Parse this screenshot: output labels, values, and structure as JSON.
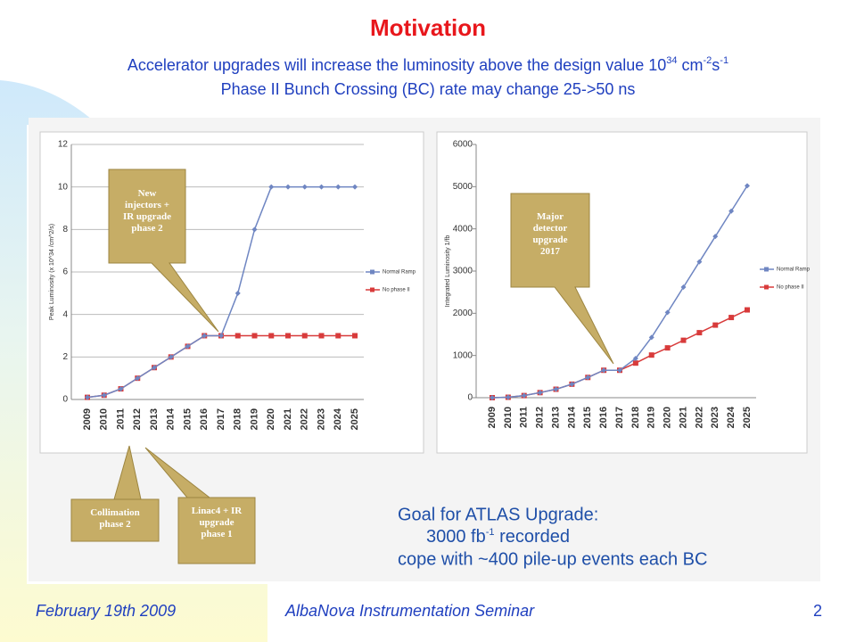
{
  "title": "Motivation",
  "subtitle_1": [
    {
      "text": "Accelerator upgrades will increase the luminosity above the design value 10"
    },
    {
      "text": "34",
      "sup": true
    },
    {
      "text": " cm"
    },
    {
      "text": "-2",
      "sup": true
    },
    {
      "text": "s"
    },
    {
      "text": "-1",
      "sup": true
    }
  ],
  "subtitle_2": [
    {
      "text": "Phase II Bunch Crossing (BC) rate may change 25->50 ns"
    }
  ],
  "callouts": [
    [
      "New",
      "injectors +",
      "IR upgrade",
      "phase 2"
    ],
    [
      "Collimation",
      "phase 2"
    ],
    [
      "Linac4 + IR",
      "upgrade",
      "phase 1"
    ],
    [
      "Major",
      "detector",
      "upgrade",
      "2017"
    ]
  ],
  "goal": {
    "heading": "Goal for ATLAS Upgrade:",
    "line_1": [
      {
        "text": "3000 fb"
      },
      {
        "text": "-1",
        "sup": true
      },
      {
        "text": " recorded"
      }
    ],
    "line_2": "cope with ~400 pile-up events each BC"
  },
  "footer": {
    "date": "February 19th 2009",
    "event": "AlbaNova Instrumentation Seminar",
    "page": "2"
  },
  "chart_data": [
    {
      "type": "line",
      "y_label": "Peak Luminosity (x 10^34 /cm^2/s)",
      "categories": [
        "2009",
        "2010",
        "2011",
        "2012",
        "2013",
        "2014",
        "2015",
        "2016",
        "2017",
        "2018",
        "2019",
        "2020",
        "2021",
        "2022",
        "2023",
        "2024",
        "2025"
      ],
      "series": [
        {
          "name": "Normal Ramp",
          "color": "#6f86c2",
          "marker": "diamond",
          "values": [
            0.1,
            0.2,
            0.5,
            1,
            1.5,
            2,
            2.5,
            3,
            3,
            5,
            8,
            10,
            10,
            10,
            10,
            10,
            10
          ]
        },
        {
          "name": "No phase II",
          "color": "#d83b3b",
          "marker": "square",
          "values": [
            0.1,
            0.2,
            0.5,
            1,
            1.5,
            2,
            2.5,
            3,
            3,
            3,
            3,
            3,
            3,
            3,
            3,
            3,
            3
          ]
        }
      ],
      "ylim": [
        0,
        12
      ],
      "yticks": [
        0,
        2,
        4,
        6,
        8,
        10,
        12
      ],
      "grid": true
    },
    {
      "type": "line",
      "y_label": "Integrated Luminosity 1/fb",
      "categories": [
        "2009",
        "2010",
        "2011",
        "2012",
        "2013",
        "2014",
        "2015",
        "2016",
        "2017",
        "2018",
        "2019",
        "2020",
        "2021",
        "2022",
        "2023",
        "2024",
        "2025"
      ],
      "series": [
        {
          "name": "Normal Ramp",
          "color": "#6f86c2",
          "marker": "diamond",
          "values": [
            0,
            10,
            50,
            120,
            200,
            320,
            480,
            650,
            650,
            930,
            1430,
            2020,
            2620,
            3220,
            3820,
            4420,
            5020
          ]
        },
        {
          "name": "No phase II",
          "color": "#d83b3b",
          "marker": "square",
          "values": [
            0,
            10,
            50,
            120,
            200,
            320,
            480,
            650,
            650,
            820,
            1010,
            1180,
            1360,
            1540,
            1720,
            1900,
            2080
          ]
        }
      ],
      "ylim": [
        0,
        6000
      ],
      "yticks": [
        0,
        1000,
        2000,
        3000,
        4000,
        5000,
        6000
      ],
      "grid": false
    }
  ]
}
